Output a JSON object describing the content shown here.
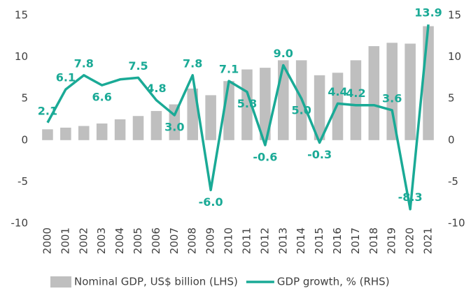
{
  "chart_data": {
    "type": "bar_line",
    "categories": [
      "2000",
      "2001",
      "2002",
      "2003",
      "2004",
      "2005",
      "2006",
      "2007",
      "2008",
      "2009",
      "2010",
      "2011",
      "2012",
      "2013",
      "2014",
      "2015",
      "2016",
      "2017",
      "2018",
      "2019",
      "2020",
      "2021"
    ],
    "series": [
      {
        "name": "Nominal GDP, US$ billion (LHS)",
        "color": "#bfbfbf",
        "type": "bar",
        "values": [
          1.3,
          1.5,
          1.7,
          2.0,
          2.5,
          2.9,
          3.5,
          4.3,
          6.2,
          5.4,
          7.1,
          8.5,
          8.7,
          9.6,
          9.6,
          7.8,
          8.1,
          9.6,
          11.3,
          11.7,
          11.6,
          13.7
        ]
      },
      {
        "name": "GDP growth, % (RHS)",
        "color": "#1aaa96",
        "type": "line",
        "axis": "y2",
        "values": [
          2.1,
          6.1,
          7.8,
          6.6,
          7.3,
          7.5,
          4.8,
          3.0,
          7.8,
          -6.0,
          7.1,
          5.8,
          -0.6,
          9.0,
          5.0,
          -0.3,
          4.4,
          4.2,
          4.2,
          3.6,
          -8.3,
          13.9
        ],
        "value_labels": [
          "2.1",
          "6.1",
          "7.8",
          "6.6",
          null,
          "7.5",
          "4.8",
          "3.0",
          "7.8",
          "-6.0",
          "7.1",
          "5.8",
          "-0.6",
          "9.0",
          "5.0",
          "-0.3",
          "4.4",
          "4.2",
          null,
          "3.6",
          "-8.3",
          "13.9"
        ]
      }
    ],
    "ylim": [
      -10,
      15
    ],
    "yticks": [
      -10,
      -5,
      0,
      5,
      10,
      15
    ],
    "y2lim": [
      -10,
      15
    ],
    "y2ticks": [
      -10,
      -5,
      0,
      5,
      10,
      15
    ]
  }
}
